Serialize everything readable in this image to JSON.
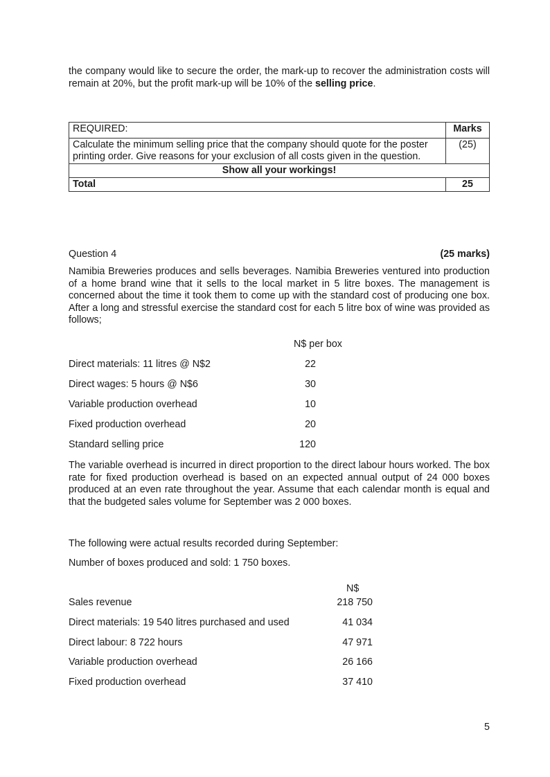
{
  "intro": {
    "text_plain": "the company would like to secure the order, the mark-up to recover the administration costs will remain at 20%, but the profit mark-up will be 10% of the ",
    "text_bold": "selling price",
    "text_end": "."
  },
  "required_table": {
    "header_label": "REQUIRED:",
    "header_marks": "Marks",
    "task": "Calculate the minimum selling price that the company should quote for the poster printing order. Give reasons for your exclusion of all costs given in the question.",
    "task_marks": "(25)",
    "note": "Show all your workings!",
    "total_label": "Total",
    "total_marks": "25"
  },
  "question": {
    "title": "Question 4",
    "marks": "(25 marks)",
    "paragraph1": "Namibia Breweries produces and sells beverages. Namibia Breweries ventured into production of a home brand wine that it sells to the local market in 5 litre boxes. The management is concerned about the time it took them to come up with the standard cost of producing one box. After a long and stressful exercise the standard cost for each 5 litre box of wine was provided as follows;",
    "standard_header": "N$ per box",
    "standard_rows": [
      {
        "label": "Direct materials: 11 litres @ N$2",
        "value": "22"
      },
      {
        "label": "Direct wages: 5 hours @ N$6",
        "value": "30"
      },
      {
        "label": "Variable production overhead",
        "value": "10"
      },
      {
        "label": "Fixed production overhead",
        "value": "20"
      },
      {
        "label": "Standard selling price",
        "value": "120"
      }
    ],
    "paragraph2": "The variable overhead is incurred in direct proportion to the direct labour hours worked. The box rate for fixed production overhead is based on an expected annual output of 24 000 boxes produced at an even rate throughout the year. Assume that each calendar month is equal and that the budgeted sales volume for September was 2 000 boxes.",
    "paragraph3": "The following were actual results recorded during September:",
    "paragraph4": "Number of boxes produced and sold: 1 750 boxes.",
    "actual_header": "N$",
    "actual_rows": [
      {
        "label": "Sales revenue",
        "value": "218 750"
      },
      {
        "label": "Direct materials: 19 540 litres purchased and used",
        "value": "41 034"
      },
      {
        "label": "Direct labour: 8 722 hours",
        "value": "47 971"
      },
      {
        "label": "Variable production overhead",
        "value": "26 166"
      },
      {
        "label": "Fixed production overhead",
        "value": "37 410"
      }
    ]
  },
  "page_number": "5"
}
